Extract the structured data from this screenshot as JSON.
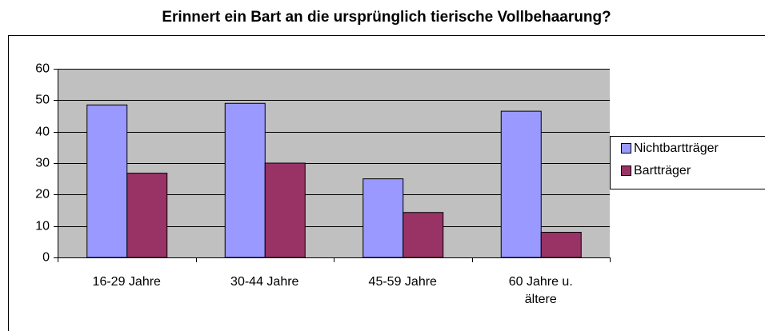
{
  "chart_data": {
    "type": "bar",
    "title": "Erinnert ein Bart an die ursprünglich tierische Vollbehaarung?",
    "categories": [
      "16-29 Jahre",
      "30-44 Jahre",
      "45-59 Jahre",
      "60 Jahre u. ältere"
    ],
    "series": [
      {
        "name": "Nichtbartträger",
        "color": "#9999ff",
        "values": [
          48.5,
          49,
          25,
          46.5
        ]
      },
      {
        "name": "Bartträger",
        "color": "#993366",
        "values": [
          26.8,
          30,
          14.3,
          8
        ]
      }
    ],
    "ylim": [
      0,
      60
    ],
    "yticks": [
      0,
      10,
      20,
      30,
      40,
      50,
      60
    ],
    "grid": true,
    "legend": "right"
  }
}
